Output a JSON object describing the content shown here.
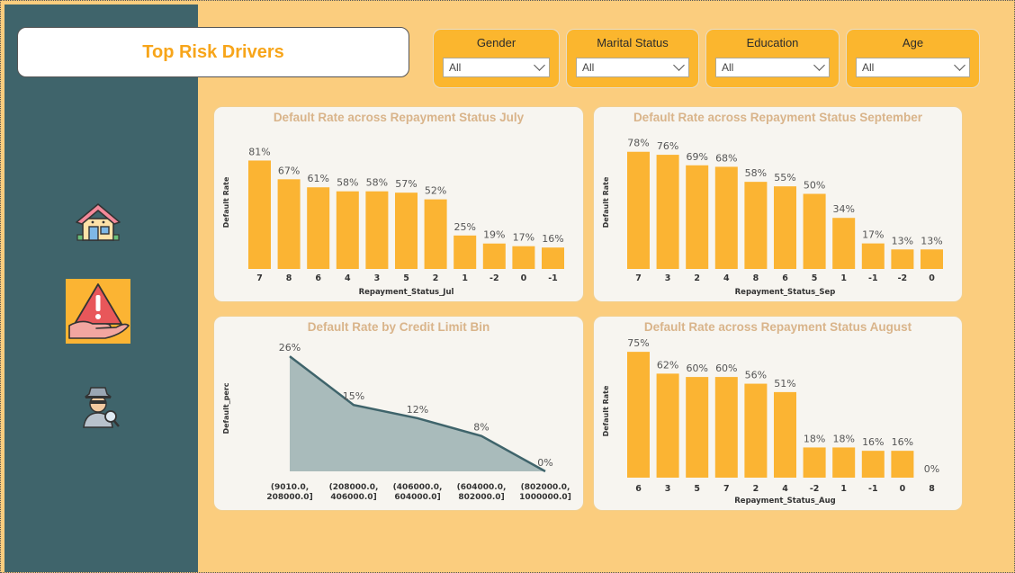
{
  "header": {
    "title": "Top Risk Drivers"
  },
  "filters": [
    {
      "label": "Gender",
      "value": "All"
    },
    {
      "label": "Marital Status",
      "value": "All"
    },
    {
      "label": "Education",
      "value": "All"
    },
    {
      "label": "Age",
      "value": "All"
    }
  ],
  "sidebar": {
    "icons": [
      "house-icon",
      "warning-hand-icon",
      "detective-icon"
    ]
  },
  "colors": {
    "bar": "#fbb433",
    "area_fill": "#a9bbbb",
    "area_line": "#3f646b",
    "sidebar": "#3f646b",
    "background": "#fbcd7e",
    "title": "#f7a51a",
    "card_title": "#d9b48a"
  },
  "chart_data": [
    {
      "id": "jul",
      "type": "bar",
      "title": "Default Rate across Repayment Status July",
      "xlabel": "Repayment_Status_Jul",
      "ylabel": "Default Rate",
      "categories": [
        "7",
        "8",
        "6",
        "4",
        "3",
        "5",
        "2",
        "1",
        "-2",
        "0",
        "-1"
      ],
      "values": [
        81,
        67,
        61,
        58,
        58,
        57,
        52,
        25,
        19,
        17,
        16
      ],
      "value_labels": [
        "81%",
        "67%",
        "61%",
        "58%",
        "58%",
        "57%",
        "52%",
        "25%",
        "19%",
        "17%",
        "16%"
      ]
    },
    {
      "id": "sep",
      "type": "bar",
      "title": "Default Rate across Repayment Status September",
      "xlabel": "Repayment_Status_Sep",
      "ylabel": "Default Rate",
      "categories": [
        "7",
        "3",
        "2",
        "4",
        "8",
        "6",
        "5",
        "1",
        "-1",
        "-2",
        "0"
      ],
      "values": [
        78,
        76,
        69,
        68,
        58,
        55,
        50,
        34,
        17,
        13,
        13
      ],
      "value_labels": [
        "78%",
        "76%",
        "69%",
        "68%",
        "58%",
        "55%",
        "50%",
        "34%",
        "17%",
        "13%",
        "13%"
      ]
    },
    {
      "id": "credit",
      "type": "area",
      "title": "Default Rate by Credit Limit Bin",
      "xlabel": "",
      "ylabel": "Default_perc",
      "categories": [
        [
          "(9010.0,",
          "208000.0]"
        ],
        [
          "(208000.0,",
          "406000.0]"
        ],
        [
          "(406000.0,",
          "604000.0]"
        ],
        [
          "(604000.0,",
          "802000.0]"
        ],
        [
          "(802000.0,",
          "1000000.0]"
        ]
      ],
      "values": [
        26,
        15,
        12,
        8,
        0
      ],
      "value_labels": [
        "26%",
        "15%",
        "12%",
        "8%",
        "0%"
      ]
    },
    {
      "id": "aug",
      "type": "bar",
      "title": "Default Rate across Repayment Status August",
      "xlabel": "Repayment_Status_Aug",
      "ylabel": "Default Rate",
      "categories": [
        "6",
        "3",
        "5",
        "7",
        "2",
        "4",
        "-2",
        "1",
        "-1",
        "0",
        "8"
      ],
      "values": [
        75,
        62,
        60,
        60,
        56,
        51,
        18,
        18,
        16,
        16,
        0
      ],
      "value_labels": [
        "75%",
        "62%",
        "60%",
        "60%",
        "56%",
        "51%",
        "18%",
        "18%",
        "16%",
        "16%",
        "0%"
      ]
    }
  ]
}
